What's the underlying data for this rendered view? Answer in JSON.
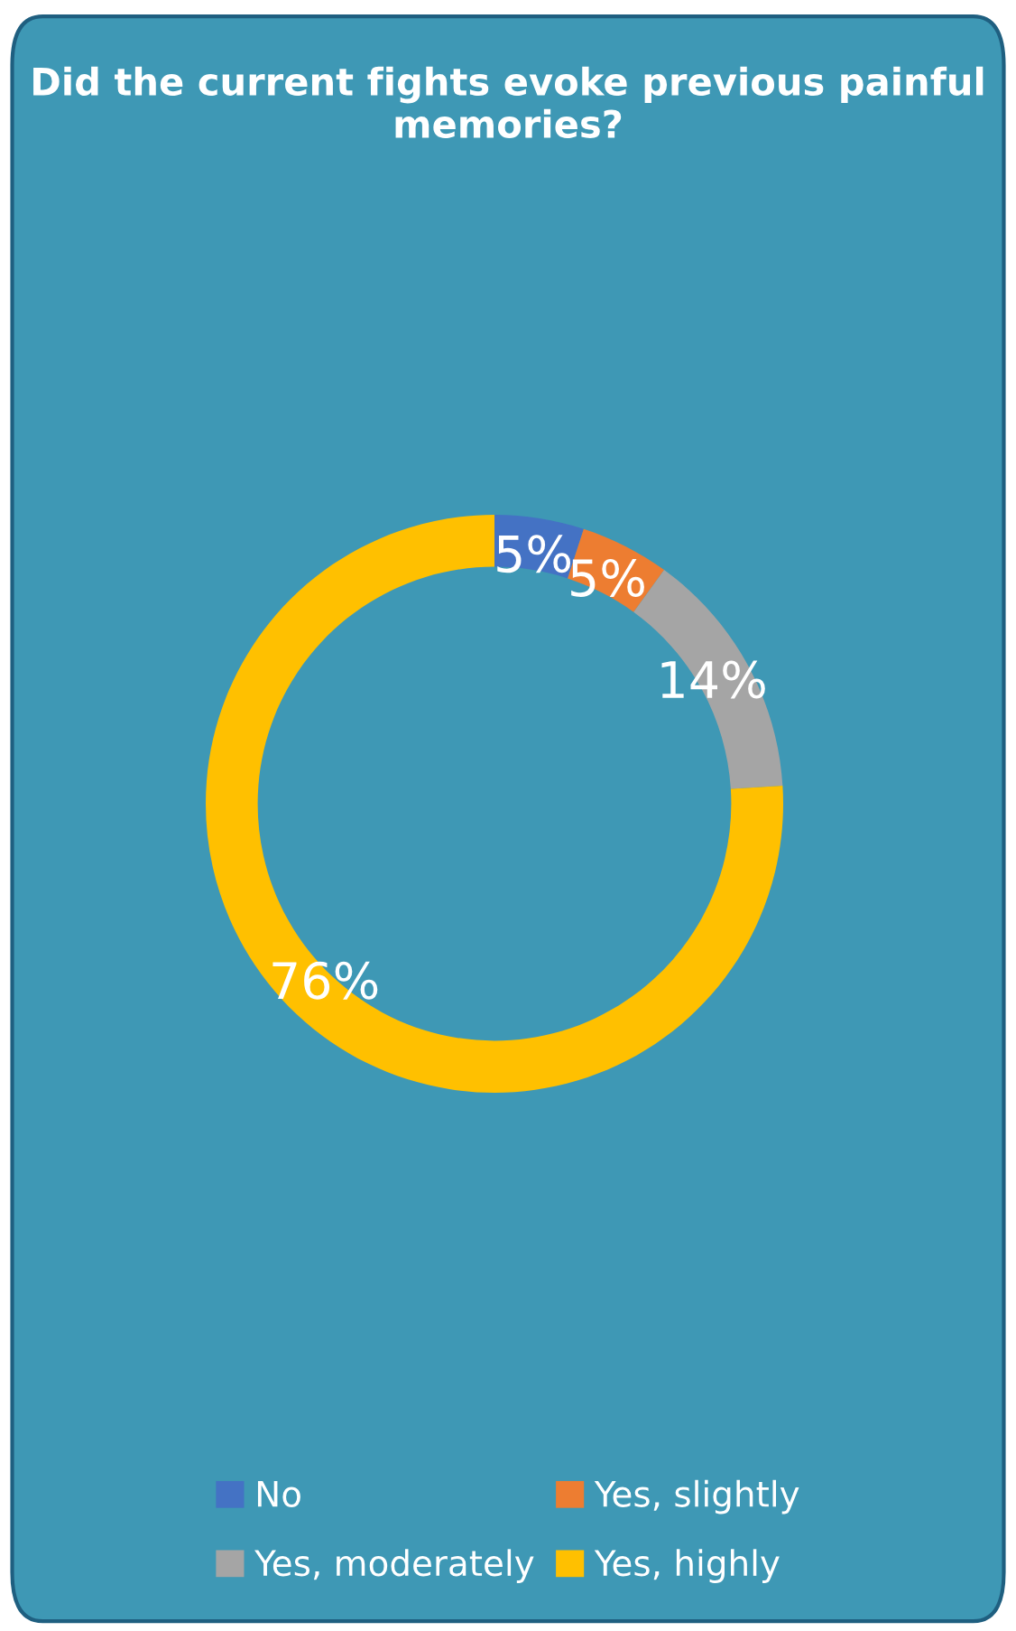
{
  "chart_data": {
    "type": "donut",
    "title": "Did the current fights evoke previous painful memories?",
    "categories": [
      "No",
      "Yes, slightly",
      "Yes, moderately",
      "Yes, highly"
    ],
    "values": [
      5,
      5,
      14,
      76
    ],
    "colors": [
      "#4472c4",
      "#ed7d31",
      "#a5a5a5",
      "#ffc000"
    ],
    "value_labels": [
      "5%",
      "5%",
      "14%",
      "76%"
    ],
    "legend": "bottom"
  }
}
